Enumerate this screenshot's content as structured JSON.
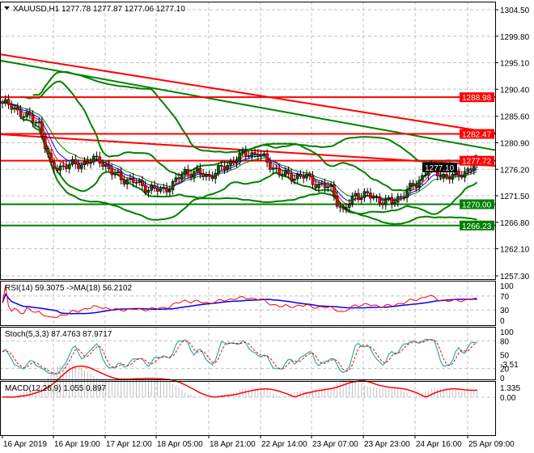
{
  "header": {
    "symbol": "XAUUSD,H1",
    "ohlc": "1277.78 1277.87 1277.06 1277.10",
    "menu_icon": "triangle-down-icon"
  },
  "chart_data": {
    "type": "candlestick",
    "symbol": "XAUUSD",
    "timeframe": "H1",
    "open": 1277.78,
    "high": 1277.87,
    "low": 1277.06,
    "close": 1277.1,
    "bars_per_sample": 4,
    "close_samples": [
      1287.9,
      1287.0,
      1285.5,
      1284.4,
      1276.5,
      1276.8,
      1277.0,
      1277.5,
      1278.0,
      1275.5,
      1274.5,
      1273.8,
      1272.8,
      1272.4,
      1273.5,
      1275.8,
      1275.5,
      1275.0,
      1276.3,
      1277.8,
      1279.0,
      1279.0,
      1277.0,
      1275.2,
      1275.0,
      1274.8,
      1273.4,
      1272.8,
      1268.5,
      1271.8,
      1271.5,
      1270.8,
      1270.2,
      1272.0,
      1273.5,
      1276.5,
      1275.2,
      1274.8,
      1275.8,
      1277.1
    ],
    "ylim": [
      1257.3,
      1304.5
    ],
    "price_ticks": [
      "1304.50",
      "1299.80",
      "1295.10",
      "1290.40",
      "1285.60",
      "1280.90",
      "1276.20",
      "1271.50",
      "1266.80",
      "1262.10",
      "1257.30"
    ],
    "time_ticks": [
      "16 Apr 2019",
      "16 Apr 19:00",
      "17 Apr 12:00",
      "18 Apr 05:00",
      "18 Apr 21:00",
      "22 Apr 14:00",
      "23 Apr 07:00",
      "23 Apr 23:00",
      "24 Apr 16:00",
      "25 Apr 09:00"
    ],
    "levels": [
      {
        "price": 1288.98,
        "label": "1288.98",
        "color": "#ff0000"
      },
      {
        "price": 1282.47,
        "label": "1282.47",
        "color": "#ff0000"
      },
      {
        "price": 1277.72,
        "label": "1277.72",
        "color": "#ff0000"
      },
      {
        "price": 1270.0,
        "label": "1270.00",
        "color": "#008000"
      },
      {
        "price": 1266.23,
        "label": "1266.23",
        "color": "#008000"
      }
    ],
    "current_price": "1277.10",
    "trend_lines": [
      {
        "color": "#ff0000",
        "from": 1296.6,
        "to": 1282.6
      },
      {
        "color": "#ff0000",
        "from": 1282.4,
        "to": 1276.8
      },
      {
        "color": "#008000",
        "from": 1295.5,
        "to": 1279.6
      }
    ],
    "colors": {
      "bull": "#006400",
      "bear": "#ff0000",
      "band": "#008000",
      "grid": "#c0c0c0"
    },
    "rsi": {
      "label": "RSI(14) 59.3075  ->MA(18) 56.2102",
      "ticks": [
        "100",
        "70",
        "30",
        "0"
      ],
      "ylim": [
        0,
        100
      ],
      "line_color": "#ff0000",
      "ma_color": "#0000ff"
    },
    "stoch": {
      "label": "Stoch(5,3,3) 87.4763 87.9717",
      "ticks": [
        "100",
        "80",
        "50",
        "20",
        "0"
      ],
      "ylim": [
        0,
        100
      ],
      "main_color": "#20b2aa",
      "signal_color": "#ff0000"
    },
    "macd": {
      "label": "MACD(12,26,9) 1.055 0.897",
      "ticks": [
        "1.335",
        "0.00",
        "-3.51"
      ],
      "ylim": [
        -3.51,
        1.335
      ],
      "hist_color": "#c0c0c0",
      "signal_color": "#ff0000"
    }
  }
}
